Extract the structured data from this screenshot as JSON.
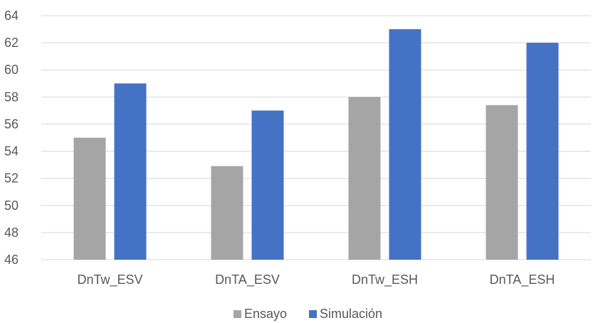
{
  "chart_data": {
    "type": "bar",
    "title": "",
    "xlabel": "",
    "ylabel": "",
    "categories": [
      "DnTw_ESV",
      "DnTA_ESV",
      "DnTw_ESH",
      "DnTA_ESH"
    ],
    "series": [
      {
        "name": "Ensayo",
        "color": "#a5a5a5",
        "values": [
          55.0,
          52.9,
          58.0,
          57.4
        ]
      },
      {
        "name": "Simulación",
        "color": "#4472c4",
        "values": [
          59.0,
          57.0,
          63.0,
          62.0
        ]
      }
    ],
    "ylim": [
      46,
      64
    ],
    "yticks": [
      "46",
      "48",
      "50",
      "52",
      "54",
      "56",
      "58",
      "60",
      "62",
      "64"
    ],
    "grid": true,
    "legend": "bottom-center"
  }
}
